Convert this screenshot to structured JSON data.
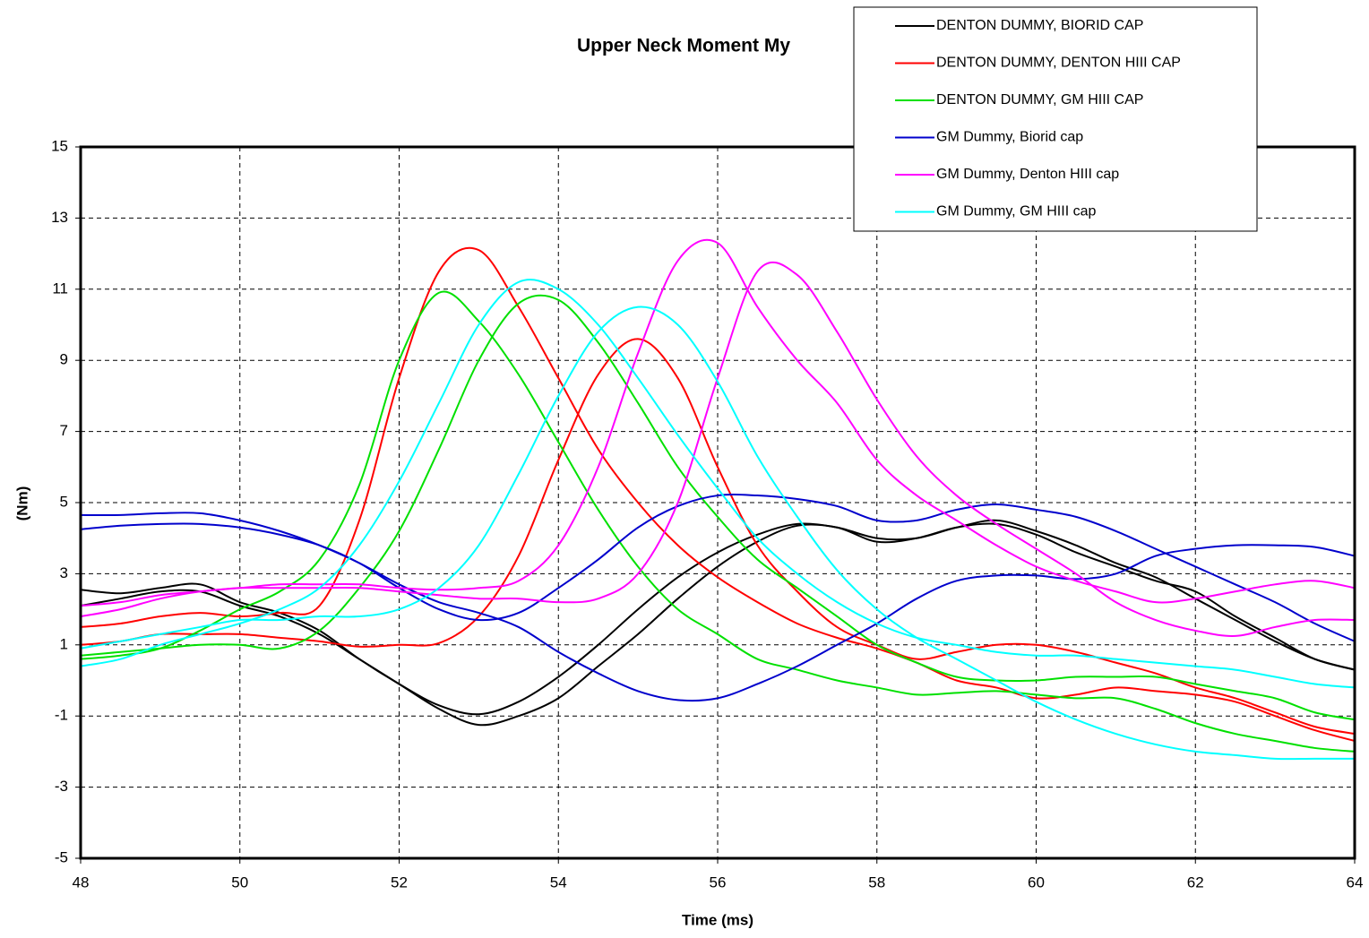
{
  "chart_data": {
    "type": "line",
    "title": "Upper Neck Moment My",
    "x_label": "Time (ms)",
    "y_label": "(Nm)",
    "x": [
      48,
      48.5,
      49,
      49.5,
      50,
      50.5,
      51,
      51.5,
      52,
      52.5,
      53,
      53.5,
      54,
      54.5,
      55,
      55.5,
      56,
      56.5,
      57,
      57.5,
      58,
      58.5,
      59,
      59.5,
      60,
      60.5,
      61,
      61.5,
      62,
      62.5,
      63,
      63.5,
      64
    ],
    "xlim": [
      48,
      64
    ],
    "xticks": [
      48,
      50,
      52,
      54,
      56,
      58,
      60,
      62,
      64
    ],
    "ylim": [
      -5,
      15
    ],
    "yticks": [
      -5,
      -3,
      -1,
      1,
      3,
      5,
      7,
      9,
      11,
      13,
      15
    ],
    "grid": true,
    "legend": "top-right",
    "series": [
      {
        "name": "DENTON DUMMY, BIORID CAP",
        "color": "#000000",
        "runs": [
          [
            2.55,
            2.45,
            2.6,
            2.7,
            2.2,
            1.9,
            1.4,
            0.6,
            -0.1,
            -0.7,
            -0.95,
            -0.6,
            0.1,
            1.0,
            2.0,
            2.9,
            3.6,
            4.1,
            4.4,
            4.3,
            4.0,
            4.0,
            4.3,
            4.5,
            4.2,
            3.8,
            3.3,
            2.9,
            2.3,
            1.7,
            1.1,
            0.6,
            0.3
          ],
          [
            2.1,
            2.3,
            2.5,
            2.5,
            2.1,
            1.8,
            1.3,
            0.6,
            -0.1,
            -0.8,
            -1.25,
            -1.0,
            -0.5,
            0.4,
            1.3,
            2.3,
            3.2,
            3.9,
            4.35,
            4.3,
            3.9,
            4.0,
            4.3,
            4.4,
            4.1,
            3.6,
            3.2,
            2.8,
            2.5,
            1.8,
            1.2,
            0.6,
            0.3
          ]
        ]
      },
      {
        "name": "DENTON DUMMY, DENTON HIII CAP",
        "color": "#ff0000",
        "runs": [
          [
            1.0,
            1.1,
            1.3,
            1.3,
            1.3,
            1.2,
            1.1,
            0.95,
            1.0,
            1.05,
            1.8,
            3.5,
            6.2,
            8.6,
            9.6,
            8.5,
            6.0,
            3.8,
            2.5,
            1.5,
            1.0,
            0.6,
            0.8,
            1.0,
            1.0,
            0.8,
            0.5,
            0.2,
            -0.2,
            -0.5,
            -0.9,
            -1.3,
            -1.5
          ],
          [
            1.5,
            1.6,
            1.8,
            1.9,
            1.8,
            1.9,
            2.1,
            4.5,
            8.5,
            11.5,
            12.1,
            10.5,
            8.5,
            6.5,
            5.0,
            3.8,
            2.9,
            2.2,
            1.6,
            1.2,
            0.9,
            0.5,
            0.0,
            -0.2,
            -0.5,
            -0.4,
            -0.2,
            -0.3,
            -0.4,
            -0.6,
            -1.0,
            -1.4,
            -1.7
          ]
        ]
      },
      {
        "name": "DENTON DUMMY, GM HIII CAP",
        "color": "#00e000",
        "runs": [
          [
            0.6,
            0.7,
            0.9,
            1.4,
            2.0,
            2.5,
            3.4,
            5.5,
            9.0,
            10.9,
            10.1,
            8.6,
            6.7,
            4.8,
            3.2,
            2.0,
            1.3,
            0.6,
            0.3,
            0.0,
            -0.2,
            -0.4,
            -0.35,
            -0.3,
            -0.4,
            -0.5,
            -0.5,
            -0.8,
            -1.2,
            -1.5,
            -1.7,
            -1.9,
            -2.0
          ],
          [
            0.7,
            0.8,
            0.9,
            1.0,
            1.0,
            0.9,
            1.4,
            2.6,
            4.2,
            6.5,
            9.0,
            10.6,
            10.7,
            9.5,
            7.8,
            6.0,
            4.6,
            3.4,
            2.6,
            1.8,
            1.0,
            0.5,
            0.1,
            0.0,
            0.0,
            0.1,
            0.1,
            0.1,
            -0.1,
            -0.3,
            -0.5,
            -0.9,
            -1.1
          ]
        ]
      },
      {
        "name": "GM Dummy, Biorid cap",
        "color": "#0000cc",
        "runs": [
          [
            4.65,
            4.65,
            4.7,
            4.7,
            4.5,
            4.2,
            3.8,
            3.3,
            2.7,
            2.2,
            1.9,
            1.5,
            0.8,
            0.2,
            -0.3,
            -0.55,
            -0.5,
            -0.1,
            0.4,
            1.0,
            1.6,
            2.3,
            2.8,
            2.95,
            2.95,
            2.85,
            3.0,
            3.5,
            3.7,
            3.8,
            3.8,
            3.75,
            3.5
          ],
          [
            4.25,
            4.35,
            4.4,
            4.4,
            4.3,
            4.1,
            3.8,
            3.3,
            2.6,
            2.0,
            1.7,
            1.9,
            2.6,
            3.4,
            4.3,
            4.9,
            5.2,
            5.2,
            5.1,
            4.9,
            4.5,
            4.5,
            4.8,
            4.95,
            4.8,
            4.6,
            4.2,
            3.7,
            3.2,
            2.7,
            2.2,
            1.6,
            1.1
          ]
        ]
      },
      {
        "name": "GM Dummy, Denton HIII cap",
        "color": "#ff00ff",
        "runs": [
          [
            1.8,
            2.0,
            2.3,
            2.5,
            2.6,
            2.7,
            2.7,
            2.7,
            2.6,
            2.55,
            2.6,
            2.8,
            3.8,
            6.0,
            9.2,
            11.8,
            12.3,
            10.5,
            9.0,
            7.8,
            6.2,
            5.2,
            4.5,
            3.8,
            3.2,
            2.8,
            2.5,
            2.2,
            2.3,
            2.5,
            2.7,
            2.8,
            2.6
          ],
          [
            2.1,
            2.2,
            2.4,
            2.5,
            2.6,
            2.6,
            2.6,
            2.6,
            2.5,
            2.4,
            2.3,
            2.3,
            2.2,
            2.3,
            3.0,
            5.0,
            8.5,
            11.5,
            11.4,
            9.8,
            7.9,
            6.3,
            5.2,
            4.4,
            3.7,
            3.0,
            2.2,
            1.7,
            1.4,
            1.25,
            1.5,
            1.7,
            1.7
          ]
        ]
      },
      {
        "name": "GM Dummy, GM HIII cap",
        "color": "#00ffff",
        "runs": [
          [
            0.4,
            0.6,
            1.0,
            1.3,
            1.6,
            2.0,
            2.6,
            3.8,
            5.6,
            7.8,
            10.0,
            11.2,
            11.0,
            10.0,
            8.5,
            6.9,
            5.4,
            4.0,
            3.0,
            2.2,
            1.6,
            1.2,
            1.0,
            0.8,
            0.7,
            0.7,
            0.6,
            0.5,
            0.4,
            0.3,
            0.1,
            -0.1,
            -0.2
          ],
          [
            0.9,
            1.1,
            1.3,
            1.5,
            1.7,
            1.7,
            1.8,
            1.8,
            2.0,
            2.6,
            3.8,
            5.8,
            8.0,
            9.8,
            10.5,
            10.0,
            8.4,
            6.3,
            4.6,
            3.1,
            2.0,
            1.2,
            0.6,
            0.0,
            -0.6,
            -1.1,
            -1.5,
            -1.8,
            -2.0,
            -2.1,
            -2.2,
            -2.2,
            -2.2
          ]
        ]
      }
    ]
  }
}
